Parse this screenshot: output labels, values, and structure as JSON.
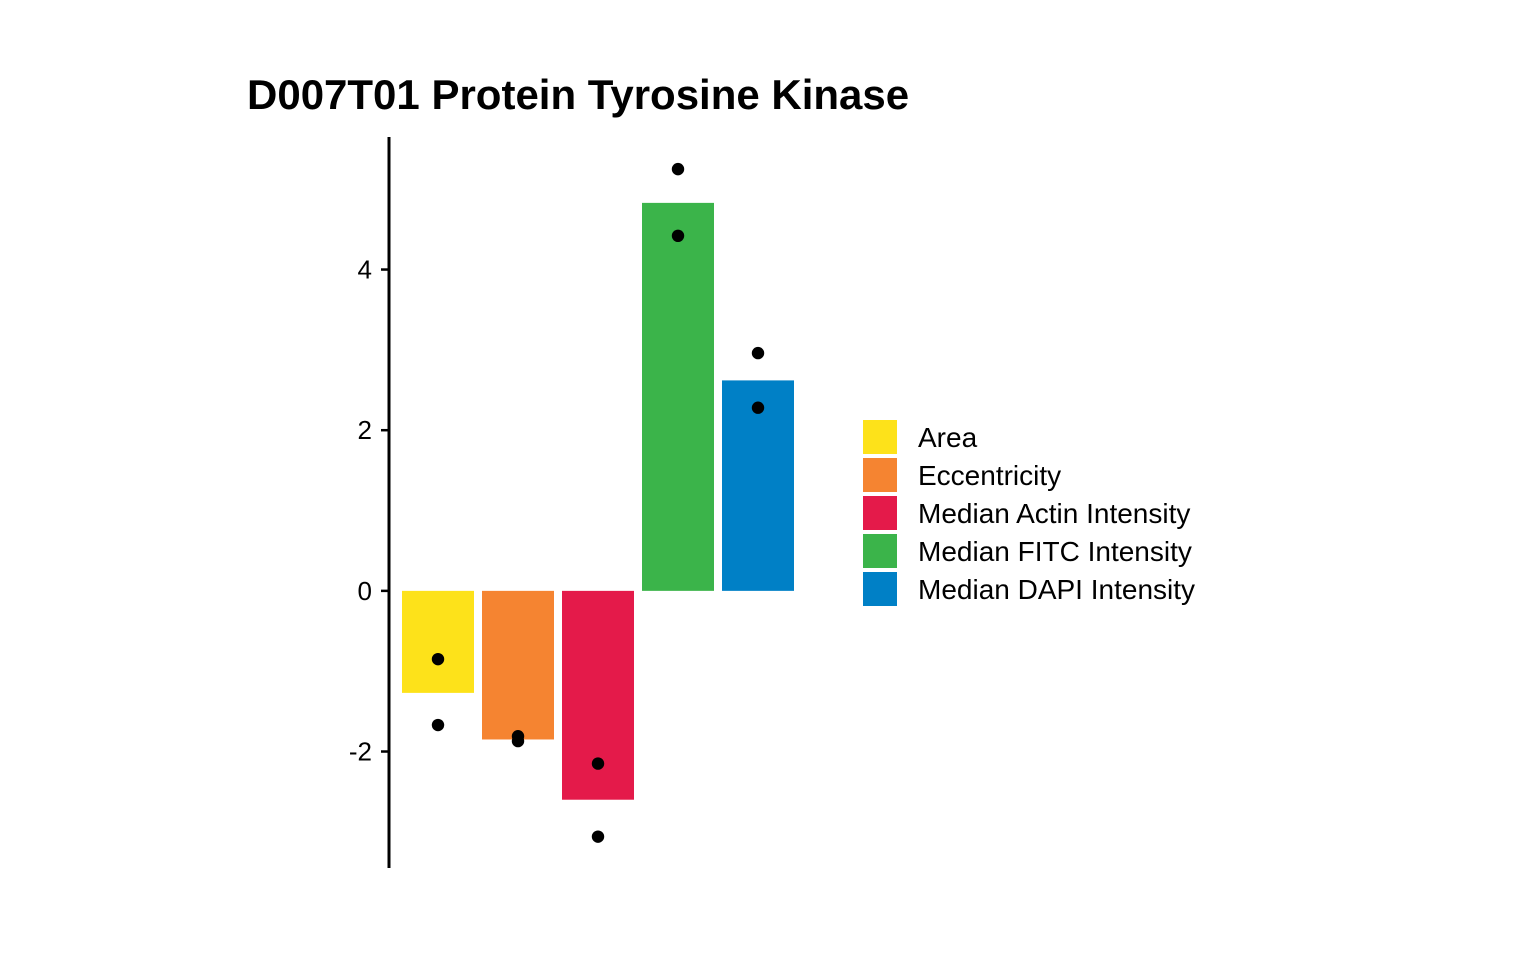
{
  "chart_data": {
    "type": "bar",
    "title": "D007T01 Protein Tyrosine Kinase",
    "xlabel": "",
    "ylabel": "",
    "ylim": [
      -3.45,
      5.65
    ],
    "yticks": [
      -2,
      0,
      2,
      4
    ],
    "grid": false,
    "legend_position": "right",
    "categories": [
      "Area",
      "Eccentricity",
      "Median Actin Intensity",
      "Median FITC Intensity",
      "Median DAPI Intensity"
    ],
    "values": [
      -1.27,
      -1.85,
      -2.6,
      4.83,
      2.62
    ],
    "colors": [
      "#FDE21A",
      "#F58431",
      "#E41A4A",
      "#3BB44A",
      "#0080C6"
    ],
    "points": [
      [
        -0.85,
        -1.67
      ],
      [
        -1.81,
        -1.87
      ],
      [
        -2.15,
        -3.06
      ],
      [
        5.25,
        4.42
      ],
      [
        2.96,
        2.28
      ]
    ],
    "legend": {
      "items": [
        {
          "label": "Area",
          "color": "#FDE21A"
        },
        {
          "label": "Eccentricity",
          "color": "#F58431"
        },
        {
          "label": "Median Actin Intensity",
          "color": "#E41A4A"
        },
        {
          "label": "Median FITC Intensity",
          "color": "#3BB44A"
        },
        {
          "label": "Median DAPI Intensity",
          "color": "#0080C6"
        }
      ]
    }
  }
}
